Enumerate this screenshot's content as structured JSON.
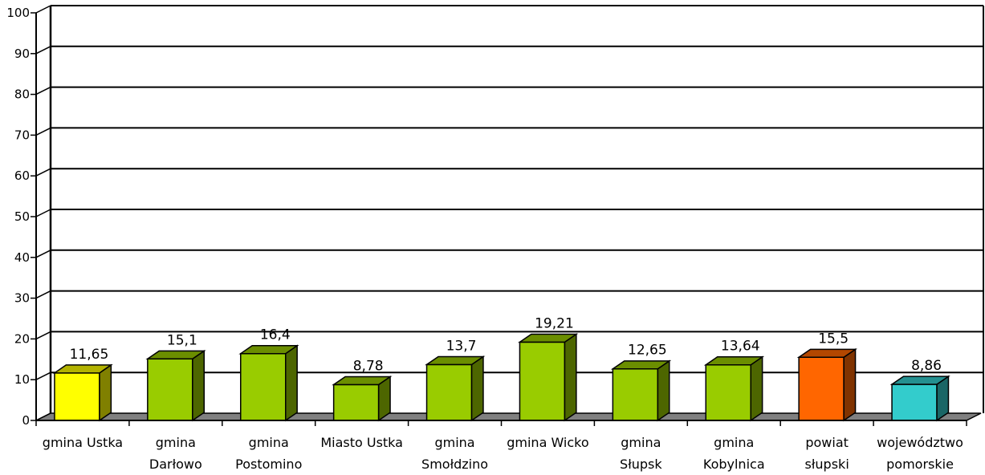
{
  "chart_data": {
    "type": "bar",
    "title": "",
    "xlabel": "",
    "ylabel": "",
    "ylim": [
      0,
      100
    ],
    "yticks": [
      "0",
      "10",
      "20",
      "30",
      "40",
      "50",
      "60",
      "70",
      "80",
      "90",
      "100"
    ],
    "grid": true,
    "legend": "none",
    "categories": [
      [
        "gmina Ustka"
      ],
      [
        "gmina",
        "Darłowo"
      ],
      [
        "gmina",
        "Postomino"
      ],
      [
        "Miasto Ustka"
      ],
      [
        "gmina",
        "Smołdzino"
      ],
      [
        "gmina Wicko"
      ],
      [
        "gmina",
        "Słupsk"
      ],
      [
        "gmina",
        "Kobylnica"
      ],
      [
        "powiat",
        "słupski"
      ],
      [
        "województwo",
        "pomorskie"
      ]
    ],
    "values": [
      11.65,
      15.1,
      16.4,
      8.78,
      13.7,
      19.21,
      12.65,
      13.64,
      15.5,
      8.86
    ],
    "data_labels": [
      "11,65",
      "15,1",
      "16,4",
      "8,78",
      "13,7",
      "19,21",
      "12,65",
      "13,64",
      "15,5",
      "8,86"
    ],
    "colors": {
      "default": {
        "front": "#99cc00",
        "side": "#4d6600",
        "top": "#6b8e00"
      },
      "gmina Ustka": {
        "front": "#ffff00",
        "side": "#808000",
        "top": "#b3b300"
      },
      "powiat słupski": {
        "front": "#ff6600",
        "side": "#803300",
        "top": "#b34700"
      },
      "województwo pomorskie": {
        "front": "#33cccc",
        "side": "#1a6666",
        "top": "#249090"
      },
      "floor": "#808080",
      "grid": "#000000"
    }
  }
}
